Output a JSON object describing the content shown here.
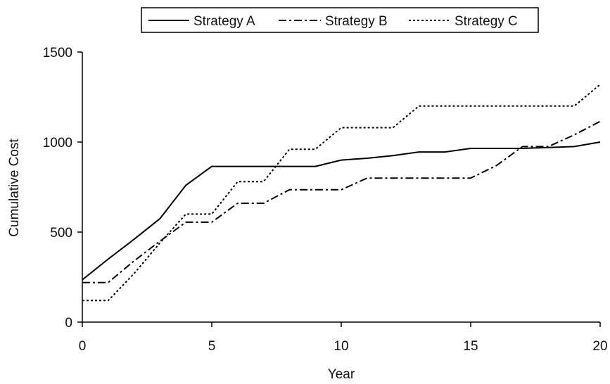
{
  "chart_data": {
    "type": "line",
    "xlabel": "Year",
    "ylabel": "Cumulative Cost",
    "xlim": [
      0,
      20
    ],
    "ylim": [
      0,
      1500
    ],
    "xticks": [
      0,
      5,
      10,
      15,
      20
    ],
    "yticks": [
      0,
      500,
      1000,
      1500
    ],
    "xtick_labels": [
      "0",
      "5",
      "10",
      "15",
      "20"
    ],
    "ytick_labels": [
      "0",
      "500",
      "1000",
      "1500"
    ],
    "legend_position": "top",
    "grid": false,
    "series": [
      {
        "name": "Strategy A",
        "style": "solid",
        "color": "#000000",
        "x": [
          0,
          1,
          2,
          3,
          4,
          5,
          6,
          7,
          8,
          9,
          10,
          11,
          12,
          13,
          14,
          15,
          16,
          17,
          18,
          19,
          20
        ],
        "y": [
          235,
          350,
          460,
          575,
          760,
          865,
          865,
          865,
          865,
          865,
          900,
          910,
          925,
          945,
          945,
          965,
          965,
          965,
          970,
          975,
          1000
        ]
      },
      {
        "name": "Strategy B",
        "style": "dashdot",
        "color": "#000000",
        "x": [
          0,
          1,
          2,
          3,
          4,
          5,
          6,
          7,
          8,
          9,
          10,
          11,
          12,
          13,
          14,
          15,
          16,
          17,
          18,
          19,
          20
        ],
        "y": [
          220,
          220,
          340,
          450,
          555,
          555,
          660,
          660,
          735,
          735,
          735,
          800,
          800,
          800,
          800,
          800,
          870,
          975,
          975,
          1040,
          1115
        ]
      },
      {
        "name": "Strategy C",
        "style": "dotted",
        "color": "#000000",
        "x": [
          0,
          1,
          2,
          3,
          4,
          5,
          6,
          7,
          8,
          9,
          10,
          11,
          12,
          13,
          14,
          15,
          16,
          17,
          18,
          19,
          20
        ],
        "y": [
          120,
          120,
          270,
          440,
          600,
          600,
          780,
          780,
          960,
          960,
          1080,
          1080,
          1080,
          1200,
          1200,
          1200,
          1200,
          1200,
          1200,
          1200,
          1320
        ]
      }
    ]
  }
}
